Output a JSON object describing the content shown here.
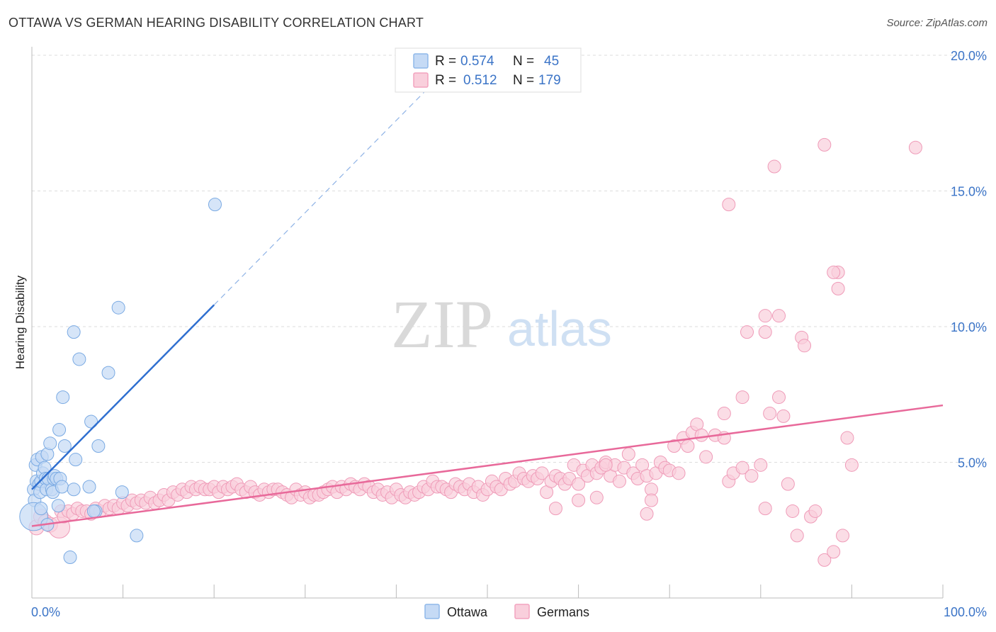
{
  "header": {
    "title": "OTTAWA VS GERMAN HEARING DISABILITY CORRELATION CHART",
    "source": "Source: ZipAtlas.com"
  },
  "watermark": {
    "part1": "ZIP",
    "part2": "atlas"
  },
  "legend_box": {
    "rows": [
      {
        "r_label": "R =",
        "r_value": "0.574",
        "n_label": "N =",
        "n_value": "45",
        "color": "#8fb8ea",
        "fill": "#c5daf5"
      },
      {
        "r_label": "R =",
        "r_value": "0.512",
        "n_label": "N =",
        "n_value": "179",
        "color": "#f3a3bf",
        "fill": "#f9cfdc"
      }
    ]
  },
  "bottom_legend": {
    "items": [
      "Ottawa",
      "Germans"
    ]
  },
  "colors": {
    "ottawa_fill": "#c5daf5",
    "ottawa_stroke": "#7aaae3",
    "ottawa_line": "#2f6fd0",
    "germans_fill": "#f9cfdc",
    "germans_stroke": "#ef9bb8",
    "germans_line": "#e8699a",
    "grid": "#dddddd",
    "tick_label": "#3b74c7"
  },
  "chart_data": {
    "type": "scatter",
    "title": "OTTAWA VS GERMAN HEARING DISABILITY CORRELATION CHART",
    "xlabel": "",
    "ylabel": "Hearing Disability",
    "xlim": [
      0,
      100
    ],
    "ylim": [
      0,
      20
    ],
    "x_tick_labels": [
      "0.0%",
      "100.0%"
    ],
    "y_ticks": [
      5,
      10,
      15,
      20
    ],
    "y_tick_labels": [
      "5.0%",
      "10.0%",
      "15.0%",
      "20.0%"
    ],
    "grid": true,
    "legend_position": "top-center",
    "series": [
      {
        "name": "Ottawa",
        "r": 0.574,
        "n": 45,
        "trend": {
          "x": [
            0,
            20
          ],
          "y": [
            4.0,
            10.8
          ],
          "extended_to_x": 45
        },
        "points": [
          [
            0.2,
            4.0
          ],
          [
            0.3,
            3.6
          ],
          [
            0.4,
            4.9
          ],
          [
            0.5,
            4.3
          ],
          [
            0.6,
            5.1
          ],
          [
            0.8,
            4.2
          ],
          [
            0.9,
            3.9
          ],
          [
            1.0,
            4.3
          ],
          [
            1.1,
            5.2
          ],
          [
            1.2,
            4.6
          ],
          [
            1.4,
            4.8
          ],
          [
            1.5,
            4.4
          ],
          [
            1.6,
            4.0
          ],
          [
            1.7,
            5.3
          ],
          [
            1.8,
            4.4
          ],
          [
            2.0,
            5.7
          ],
          [
            2.2,
            4.0
          ],
          [
            2.3,
            3.9
          ],
          [
            2.4,
            4.4
          ],
          [
            2.5,
            4.5
          ],
          [
            2.7,
            4.4
          ],
          [
            2.9,
            3.4
          ],
          [
            3.0,
            6.2
          ],
          [
            3.1,
            4.4
          ],
          [
            3.3,
            4.1
          ],
          [
            3.4,
            7.4
          ],
          [
            3.6,
            5.6
          ],
          [
            4.6,
            4.0
          ],
          [
            4.6,
            9.8
          ],
          [
            4.8,
            5.1
          ],
          [
            5.2,
            8.8
          ],
          [
            6.3,
            4.1
          ],
          [
            6.5,
            6.5
          ],
          [
            7.0,
            3.2
          ],
          [
            7.3,
            5.6
          ],
          [
            8.4,
            8.3
          ],
          [
            9.5,
            10.7
          ],
          [
            9.9,
            3.9
          ],
          [
            11.5,
            2.3
          ],
          [
            20.1,
            14.5
          ],
          [
            4.2,
            1.5
          ],
          [
            0.2,
            3.0
          ],
          [
            1.7,
            2.7
          ],
          [
            6.8,
            3.2
          ],
          [
            1.0,
            3.3
          ]
        ],
        "sizes": [
          10,
          10,
          10,
          10,
          10,
          10,
          10,
          10,
          10,
          10,
          10,
          10,
          10,
          10,
          10,
          10,
          10,
          10,
          10,
          10,
          10,
          10,
          10,
          10,
          10,
          10,
          10,
          10,
          10,
          10,
          10,
          10,
          10,
          10,
          10,
          10,
          10,
          10,
          10,
          10,
          10,
          22,
          10,
          10,
          10
        ]
      },
      {
        "name": "Germans",
        "r": 0.512,
        "n": 179,
        "trend": {
          "x": [
            0,
            100
          ],
          "y": [
            2.65,
            7.1
          ]
        },
        "points": [
          [
            0.5,
            2.6
          ],
          [
            1.0,
            3.0
          ],
          [
            1.5,
            2.8
          ],
          [
            2.0,
            2.7
          ],
          [
            3.0,
            2.6
          ],
          [
            3.2,
            3.2
          ],
          [
            3.5,
            3.0
          ],
          [
            4.0,
            3.2
          ],
          [
            4.5,
            3.1
          ],
          [
            5.0,
            3.3
          ],
          [
            5.5,
            3.2
          ],
          [
            6.0,
            3.2
          ],
          [
            6.5,
            3.1
          ],
          [
            7.0,
            3.3
          ],
          [
            7.5,
            3.2
          ],
          [
            8.0,
            3.4
          ],
          [
            8.5,
            3.3
          ],
          [
            9.0,
            3.4
          ],
          [
            9.5,
            3.3
          ],
          [
            10.0,
            3.5
          ],
          [
            10.5,
            3.4
          ],
          [
            11.0,
            3.6
          ],
          [
            11.5,
            3.5
          ],
          [
            12.0,
            3.6
          ],
          [
            12.5,
            3.5
          ],
          [
            13.0,
            3.7
          ],
          [
            13.5,
            3.5
          ],
          [
            14.0,
            3.6
          ],
          [
            14.5,
            3.8
          ],
          [
            15.0,
            3.6
          ],
          [
            15.5,
            3.9
          ],
          [
            16.0,
            3.8
          ],
          [
            16.5,
            4.0
          ],
          [
            17.0,
            3.9
          ],
          [
            17.5,
            4.1
          ],
          [
            18.0,
            4.0
          ],
          [
            18.5,
            4.1
          ],
          [
            19.0,
            4.0
          ],
          [
            19.5,
            4.0
          ],
          [
            20.0,
            4.1
          ],
          [
            20.5,
            3.9
          ],
          [
            21.0,
            4.1
          ],
          [
            21.5,
            4.0
          ],
          [
            22.0,
            4.1
          ],
          [
            22.5,
            4.2
          ],
          [
            23.0,
            4.0
          ],
          [
            23.5,
            3.9
          ],
          [
            24.0,
            4.1
          ],
          [
            24.5,
            3.9
          ],
          [
            25.0,
            3.8
          ],
          [
            25.5,
            4.0
          ],
          [
            26.0,
            3.9
          ],
          [
            26.5,
            4.0
          ],
          [
            27.0,
            4.0
          ],
          [
            27.5,
            3.9
          ],
          [
            28.0,
            3.8
          ],
          [
            28.5,
            3.7
          ],
          [
            29.0,
            4.0
          ],
          [
            29.5,
            3.8
          ],
          [
            30.0,
            3.9
          ],
          [
            30.5,
            3.7
          ],
          [
            31.0,
            3.8
          ],
          [
            31.5,
            3.8
          ],
          [
            32.0,
            3.9
          ],
          [
            32.5,
            4.0
          ],
          [
            33.0,
            4.1
          ],
          [
            33.5,
            3.9
          ],
          [
            34.0,
            4.1
          ],
          [
            34.5,
            4.0
          ],
          [
            35.0,
            4.2
          ],
          [
            35.5,
            4.1
          ],
          [
            36.0,
            4.0
          ],
          [
            36.5,
            4.2
          ],
          [
            37.0,
            4.1
          ],
          [
            37.5,
            3.9
          ],
          [
            38.0,
            4.0
          ],
          [
            38.5,
            3.8
          ],
          [
            39.0,
            3.9
          ],
          [
            39.5,
            3.7
          ],
          [
            40.0,
            4.0
          ],
          [
            40.5,
            3.8
          ],
          [
            41.0,
            3.7
          ],
          [
            41.5,
            3.9
          ],
          [
            42.0,
            3.8
          ],
          [
            42.5,
            3.9
          ],
          [
            43.0,
            4.1
          ],
          [
            43.5,
            4.0
          ],
          [
            44.0,
            4.3
          ],
          [
            44.5,
            4.1
          ],
          [
            45.0,
            4.1
          ],
          [
            45.5,
            4.0
          ],
          [
            46.0,
            3.9
          ],
          [
            46.5,
            4.2
          ],
          [
            47.0,
            4.1
          ],
          [
            47.5,
            4.0
          ],
          [
            48.0,
            4.2
          ],
          [
            48.5,
            3.9
          ],
          [
            49.0,
            4.1
          ],
          [
            49.5,
            3.8
          ],
          [
            50.0,
            4.0
          ],
          [
            50.5,
            4.3
          ],
          [
            51.0,
            4.1
          ],
          [
            51.5,
            4.0
          ],
          [
            52.0,
            4.4
          ],
          [
            52.5,
            4.2
          ],
          [
            53.0,
            4.3
          ],
          [
            53.5,
            4.6
          ],
          [
            54.0,
            4.4
          ],
          [
            54.5,
            4.3
          ],
          [
            55.0,
            4.5
          ],
          [
            55.5,
            4.4
          ],
          [
            56.0,
            4.6
          ],
          [
            56.5,
            3.9
          ],
          [
            57.0,
            4.3
          ],
          [
            57.5,
            4.5
          ],
          [
            58.0,
            4.4
          ],
          [
            58.5,
            4.2
          ],
          [
            59.0,
            4.4
          ],
          [
            59.5,
            4.9
          ],
          [
            60.0,
            4.2
          ],
          [
            60.5,
            4.7
          ],
          [
            61.0,
            4.5
          ],
          [
            61.5,
            4.9
          ],
          [
            62.0,
            4.6
          ],
          [
            62.5,
            4.8
          ],
          [
            63.0,
            5.0
          ],
          [
            63.5,
            4.5
          ],
          [
            64.0,
            4.9
          ],
          [
            64.5,
            4.3
          ],
          [
            65.0,
            4.8
          ],
          [
            65.5,
            5.3
          ],
          [
            66.0,
            4.6
          ],
          [
            66.5,
            4.4
          ],
          [
            67.0,
            4.9
          ],
          [
            67.5,
            4.5
          ],
          [
            68.0,
            4.0
          ],
          [
            68.5,
            4.6
          ],
          [
            69.0,
            5.0
          ],
          [
            69.5,
            4.8
          ],
          [
            70.0,
            4.7
          ],
          [
            70.5,
            5.6
          ],
          [
            71.0,
            4.6
          ],
          [
            71.5,
            5.9
          ],
          [
            72.0,
            5.6
          ],
          [
            72.5,
            6.1
          ],
          [
            73.0,
            6.4
          ],
          [
            73.5,
            6.0
          ],
          [
            74.0,
            5.2
          ],
          [
            75.0,
            6.0
          ],
          [
            76.0,
            5.9
          ],
          [
            76.5,
            4.3
          ],
          [
            77.0,
            4.6
          ],
          [
            78.0,
            4.8
          ],
          [
            79.0,
            4.5
          ],
          [
            80.0,
            4.9
          ],
          [
            80.5,
            3.3
          ],
          [
            81.0,
            6.8
          ],
          [
            82.0,
            7.4
          ],
          [
            82.5,
            6.7
          ],
          [
            83.0,
            4.2
          ],
          [
            83.5,
            3.2
          ],
          [
            84.0,
            2.3
          ],
          [
            85.5,
            3.0
          ],
          [
            86.0,
            3.2
          ],
          [
            87.0,
            1.4
          ],
          [
            88.0,
            1.7
          ],
          [
            89.0,
            2.3
          ],
          [
            90.0,
            4.9
          ],
          [
            89.5,
            5.9
          ],
          [
            60.0,
            3.6
          ],
          [
            62.0,
            3.7
          ],
          [
            57.5,
            3.3
          ],
          [
            63.0,
            4.9
          ],
          [
            67.5,
            3.1
          ],
          [
            68.0,
            3.6
          ],
          [
            78.5,
            9.8
          ],
          [
            80.5,
            9.8
          ]
        ],
        "sizes": [
          14,
          14,
          14,
          14,
          20,
          12,
          12,
          12,
          12,
          12,
          12,
          12,
          12,
          12,
          12,
          12,
          12,
          12,
          12,
          12,
          12,
          12,
          12,
          12,
          12,
          12,
          12,
          12,
          12,
          12,
          12,
          12,
          12,
          12,
          12,
          12,
          12,
          12,
          12,
          12,
          12,
          12,
          12,
          12,
          12,
          12,
          12,
          12,
          12,
          12,
          12,
          12,
          12,
          12,
          12,
          12,
          12,
          12,
          12,
          12,
          12,
          12,
          12,
          12,
          12,
          12,
          12,
          12,
          12,
          12,
          12,
          12,
          12,
          12,
          12,
          12,
          12,
          12,
          12,
          12,
          12,
          12,
          12,
          12,
          12,
          12,
          12,
          12,
          12,
          12,
          12,
          12,
          12,
          12,
          12,
          12,
          12,
          12,
          12,
          12,
          12,
          12,
          12,
          12,
          12,
          12,
          12,
          12,
          12,
          12,
          12,
          12,
          12,
          12,
          12,
          12,
          12,
          12,
          12,
          12,
          12,
          12,
          12,
          12,
          12,
          12,
          12,
          12,
          12,
          12,
          12,
          12,
          12,
          12,
          12,
          12,
          12,
          12,
          12,
          12,
          12,
          12,
          12,
          12,
          12,
          12,
          12,
          12,
          12,
          12,
          12,
          12,
          12,
          12,
          12,
          12,
          12,
          12,
          12,
          12,
          12,
          12,
          12,
          12,
          12,
          12,
          12,
          12,
          12,
          12,
          12,
          12,
          12,
          12,
          12,
          12,
          12,
          12
        ],
        "outliers": [
          [
            81.5,
            15.9
          ],
          [
            87.0,
            16.7
          ],
          [
            97.0,
            16.6
          ],
          [
            76.5,
            14.5
          ],
          [
            88.5,
            12.0
          ],
          [
            88.0,
            12.0
          ],
          [
            88.5,
            11.4
          ],
          [
            80.5,
            10.4
          ],
          [
            82.0,
            10.4
          ],
          [
            84.5,
            9.6
          ],
          [
            84.8,
            9.3
          ],
          [
            78.0,
            7.4
          ],
          [
            76.0,
            6.8
          ]
        ]
      }
    ]
  }
}
